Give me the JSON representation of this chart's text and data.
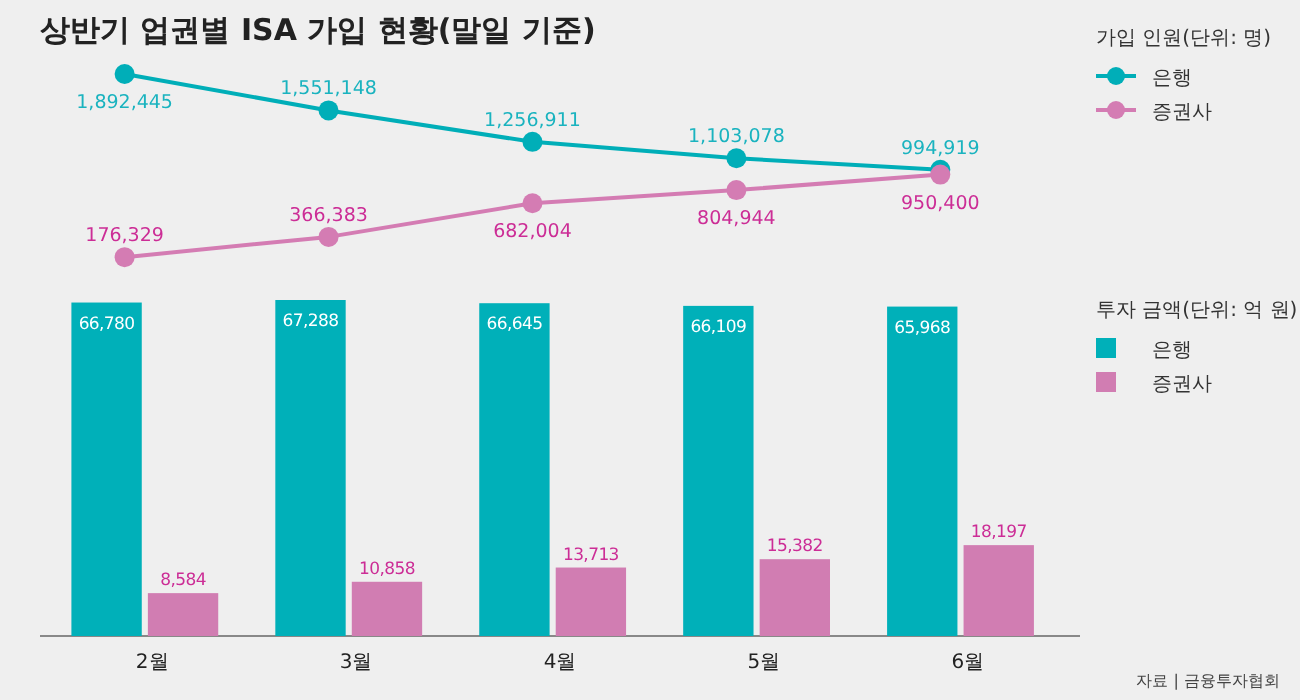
{
  "chart_data": [
    {
      "type": "line",
      "title": "상반기 업권별 ISA 가입 현황(말일 기준)",
      "legend_title": "가입 인원(단위: 명)",
      "legend": "right",
      "marker": "circle",
      "series": [
        {
          "name": "은행",
          "color": "#00aeb8",
          "values": [
            1892445,
            1551148,
            1256911,
            1103078,
            994919
          ],
          "value_labels": [
            "1,892,445",
            "1,551,148",
            "1,256,911",
            "1,103,078",
            "994,919"
          ]
        },
        {
          "name": "증권사",
          "color": "#d47cb3",
          "values": [
            176329,
            366383,
            682004,
            804944,
            950400
          ],
          "value_labels": [
            "176,329",
            "366,383",
            "682,004",
            "804,944",
            "950,400"
          ]
        }
      ]
    },
    {
      "type": "bar",
      "categories": [
        "2월",
        "3월",
        "4월",
        "5월",
        "6월"
      ],
      "legend_title": "투자 금액(단위: 억 원)",
      "legend": "right",
      "tick_labels": "x",
      "annotations": [
        "자료 | 금융투자협회"
      ],
      "series": [
        {
          "name": "은행",
          "color": "#00b0b9",
          "values": [
            66780,
            67288,
            66645,
            66109,
            65968
          ],
          "value_labels": [
            "66,780",
            "67,288",
            "66,645",
            "66,109",
            "65,968"
          ]
        },
        {
          "name": "증권사",
          "color": "#d17db2",
          "values": [
            8584,
            10858,
            13713,
            15382,
            18197
          ],
          "value_labels": [
            "8,584",
            "10,858",
            "13,713",
            "15,382",
            "18,197"
          ]
        }
      ]
    }
  ]
}
